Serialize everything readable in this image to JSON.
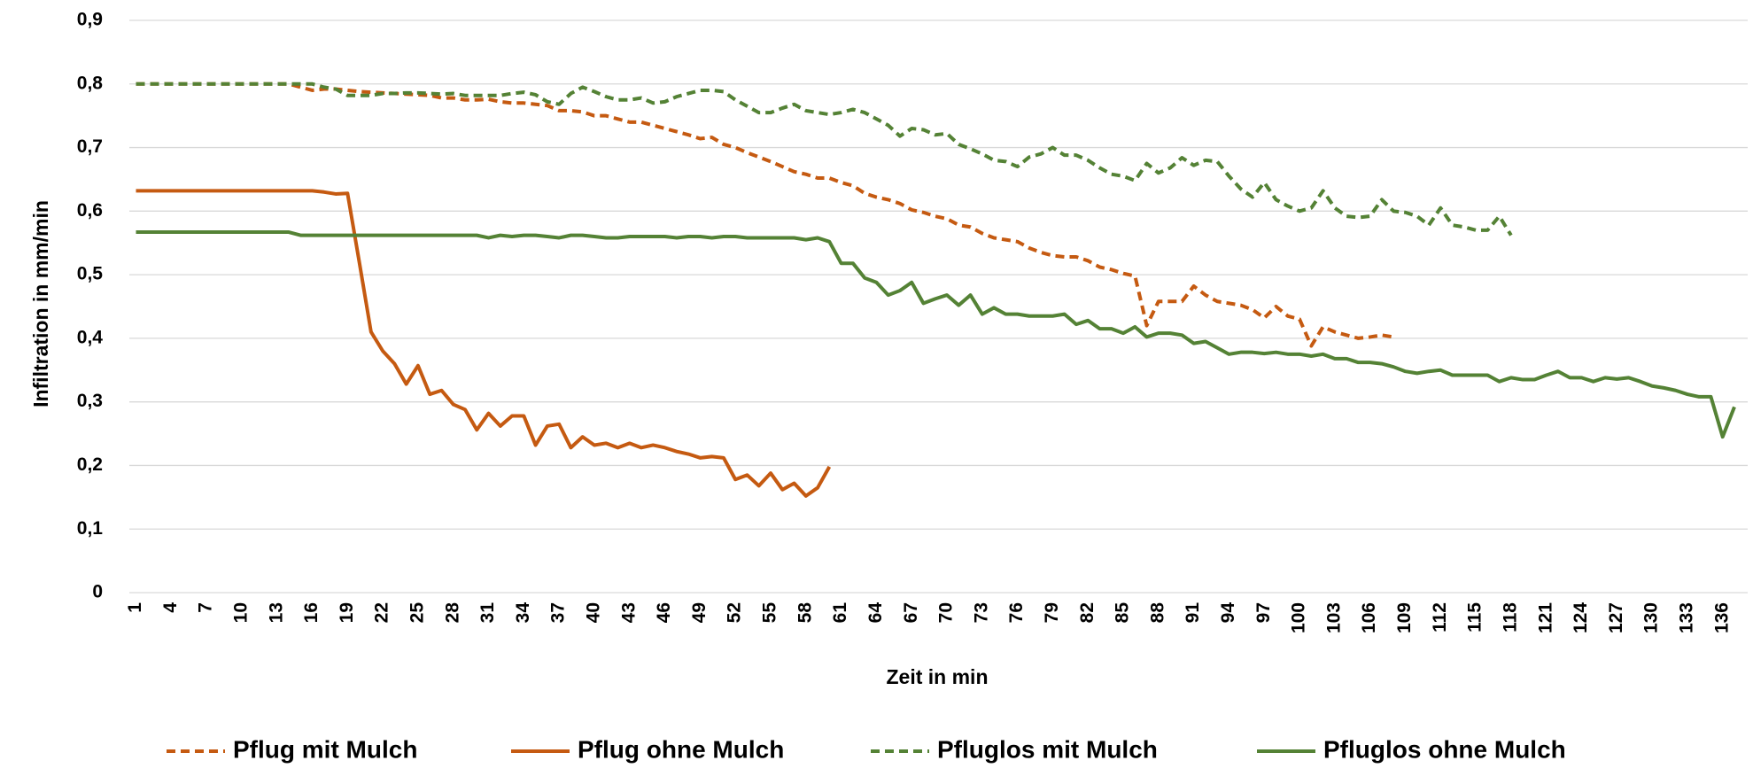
{
  "chart_data": {
    "type": "line",
    "xlabel": "Zeit in min",
    "ylabel": "Infiltration in mm/min",
    "categories": [
      1,
      null,
      null,
      4,
      null,
      null,
      7,
      null,
      null,
      10,
      null,
      null,
      13,
      null,
      null,
      16,
      null,
      null,
      19,
      null,
      null,
      22,
      null,
      null,
      25,
      null,
      null,
      28,
      null,
      null,
      31,
      null,
      null,
      34,
      null,
      null,
      37,
      null,
      null,
      40,
      null,
      null,
      43,
      null,
      null,
      46,
      null,
      null,
      49,
      null,
      null,
      52,
      null,
      null,
      55,
      null,
      null,
      58,
      null,
      null,
      61,
      null,
      null,
      64,
      null,
      null,
      67,
      null,
      null,
      70,
      null,
      null,
      73,
      null,
      null,
      76,
      null,
      null,
      79,
      null,
      null,
      82,
      null,
      null,
      85,
      null,
      null,
      88,
      null,
      null,
      91,
      null,
      null,
      94,
      null,
      null,
      97,
      null,
      null,
      100,
      null,
      null,
      103,
      null,
      null,
      106,
      null,
      null,
      109,
      null,
      null,
      112,
      null,
      null,
      115,
      null,
      null,
      118,
      null,
      null,
      121,
      null,
      null,
      124,
      null,
      null,
      127,
      null,
      null,
      130,
      null,
      null,
      133,
      null,
      null,
      136,
      null
    ],
    "ylim": [
      0,
      0.9
    ],
    "yticks": [
      0,
      {
        "value": 0.1,
        "label": "0,1"
      },
      {
        "value": 0.2,
        "label": "0,2"
      },
      {
        "value": 0.3,
        "label": "0,3"
      },
      {
        "value": 0.4,
        "label": "0,4"
      },
      {
        "value": 0.5,
        "label": "0,5"
      },
      {
        "value": 0.6,
        "label": "0,6"
      },
      {
        "value": 0.7,
        "label": "0,7"
      },
      {
        "value": 0.8,
        "label": "0,8"
      },
      {
        "value": 0.9,
        "label": "0,9"
      }
    ],
    "grid": true,
    "legend": "bottom",
    "series": [
      {
        "name": "Pflug mit Mulch",
        "color": "#c55a11",
        "linestyle": "dashed",
        "values": [
          0.8,
          0.8,
          0.8,
          0.8,
          0.8,
          0.8,
          0.8,
          0.8,
          0.8,
          0.8,
          0.8,
          0.8,
          0.8,
          0.8,
          0.795,
          0.79,
          0.792,
          0.792,
          0.79,
          0.788,
          0.787,
          0.786,
          0.785,
          0.784,
          0.783,
          0.782,
          0.778,
          0.778,
          0.775,
          0.775,
          0.776,
          0.772,
          0.77,
          0.77,
          0.768,
          0.766,
          0.758,
          0.758,
          0.756,
          0.75,
          0.75,
          0.745,
          0.74,
          0.74,
          0.735,
          0.73,
          0.725,
          0.72,
          0.714,
          0.716,
          0.705,
          0.7,
          0.692,
          0.685,
          0.678,
          0.67,
          0.662,
          0.658,
          0.652,
          0.652,
          0.645,
          0.64,
          0.628,
          0.622,
          0.618,
          0.612,
          0.602,
          0.598,
          0.592,
          0.588,
          0.578,
          0.575,
          0.565,
          0.558,
          0.555,
          0.552,
          0.542,
          0.535,
          0.53,
          0.528,
          0.528,
          0.522,
          0.512,
          0.508,
          0.502,
          0.498,
          0.42,
          0.458,
          0.458,
          0.458,
          0.482,
          0.468,
          0.458,
          0.455,
          0.452,
          0.445,
          0.432,
          0.45,
          0.435,
          0.43,
          0.388,
          0.418,
          0.41,
          0.405,
          0.4,
          0.402,
          0.405,
          0.402,
          null,
          null,
          null,
          null,
          null,
          null,
          null,
          null,
          null,
          null,
          null,
          null,
          null,
          null,
          null,
          null,
          null,
          null,
          null,
          null,
          null,
          null,
          null,
          null,
          null,
          null,
          null,
          null,
          null
        ]
      },
      {
        "name": "Pflug ohne Mulch",
        "color": "#c55a11",
        "linestyle": "solid",
        "values": [
          0.632,
          0.632,
          0.632,
          0.632,
          0.632,
          0.632,
          0.632,
          0.632,
          0.632,
          0.632,
          0.632,
          0.632,
          0.632,
          0.632,
          0.632,
          0.632,
          0.63,
          0.627,
          0.628,
          0.52,
          0.41,
          0.38,
          0.36,
          0.328,
          0.357,
          0.312,
          0.318,
          0.296,
          0.288,
          0.256,
          0.282,
          0.262,
          0.278,
          0.278,
          0.232,
          0.262,
          0.265,
          0.228,
          0.245,
          0.232,
          0.235,
          0.228,
          0.235,
          0.228,
          0.232,
          0.228,
          0.222,
          0.218,
          0.212,
          0.214,
          0.212,
          0.178,
          0.185,
          0.168,
          0.188,
          0.162,
          0.172,
          0.152,
          0.165,
          0.198,
          null,
          null,
          null,
          null,
          null,
          null,
          null,
          null,
          null,
          null,
          null,
          null,
          null,
          null,
          null,
          null,
          null,
          null,
          null,
          null,
          null,
          null,
          null,
          null,
          null,
          null,
          null,
          null,
          null,
          null,
          null,
          null,
          null,
          null,
          null,
          null,
          null,
          null,
          null,
          null,
          null,
          null,
          null,
          null,
          null,
          null,
          null,
          null,
          null,
          null,
          null,
          null,
          null,
          null,
          null,
          null,
          null,
          null,
          null,
          null,
          null,
          null,
          null,
          null,
          null,
          null,
          null,
          null,
          null,
          null,
          null,
          null,
          null,
          null,
          null,
          null,
          null
        ]
      },
      {
        "name": "Pfluglos mit Mulch",
        "color": "#548235",
        "linestyle": "dashed",
        "values": [
          0.8,
          0.8,
          0.8,
          0.8,
          0.8,
          0.8,
          0.8,
          0.8,
          0.8,
          0.8,
          0.8,
          0.8,
          0.8,
          0.8,
          0.8,
          0.8,
          0.795,
          0.792,
          0.782,
          0.782,
          0.782,
          0.785,
          0.785,
          0.786,
          0.786,
          0.785,
          0.784,
          0.785,
          0.782,
          0.782,
          0.782,
          0.782,
          0.785,
          0.787,
          0.783,
          0.772,
          0.768,
          0.785,
          0.795,
          0.788,
          0.78,
          0.775,
          0.775,
          0.778,
          0.77,
          0.772,
          0.78,
          0.785,
          0.79,
          0.79,
          0.788,
          0.775,
          0.765,
          0.755,
          0.755,
          0.762,
          0.768,
          0.758,
          0.755,
          0.752,
          0.755,
          0.76,
          0.755,
          0.745,
          0.735,
          0.718,
          0.73,
          0.728,
          0.72,
          0.722,
          0.705,
          0.698,
          0.69,
          0.68,
          0.678,
          0.67,
          0.685,
          0.69,
          0.7,
          0.688,
          0.688,
          0.68,
          0.668,
          0.658,
          0.655,
          0.648,
          0.675,
          0.66,
          0.668,
          0.684,
          0.672,
          0.68,
          0.678,
          0.655,
          0.635,
          0.622,
          0.645,
          0.618,
          0.608,
          0.6,
          0.605,
          0.632,
          0.605,
          0.592,
          0.59,
          0.592,
          0.618,
          0.6,
          0.598,
          0.592,
          0.578,
          0.605,
          0.578,
          0.575,
          0.57,
          0.57,
          0.592,
          0.562,
          null,
          null,
          null,
          null,
          null,
          null,
          null,
          null,
          null,
          null,
          null,
          null,
          null,
          null,
          null,
          null,
          null,
          null,
          null
        ]
      },
      {
        "name": "Pfluglos ohne Mulch",
        "color": "#548235",
        "linestyle": "solid",
        "values": [
          0.567,
          0.567,
          0.567,
          0.567,
          0.567,
          0.567,
          0.567,
          0.567,
          0.567,
          0.567,
          0.567,
          0.567,
          0.567,
          0.567,
          0.562,
          0.562,
          0.562,
          0.562,
          0.562,
          0.562,
          0.562,
          0.562,
          0.562,
          0.562,
          0.562,
          0.562,
          0.562,
          0.562,
          0.562,
          0.562,
          0.558,
          0.562,
          0.56,
          0.562,
          0.562,
          0.56,
          0.558,
          0.562,
          0.562,
          0.56,
          0.558,
          0.558,
          0.56,
          0.56,
          0.56,
          0.56,
          0.558,
          0.56,
          0.56,
          0.558,
          0.56,
          0.56,
          0.558,
          0.558,
          0.558,
          0.558,
          0.558,
          0.555,
          0.558,
          0.552,
          0.518,
          0.518,
          0.495,
          0.488,
          0.468,
          0.475,
          0.488,
          0.455,
          0.462,
          0.468,
          0.452,
          0.468,
          0.438,
          0.448,
          0.438,
          0.438,
          0.435,
          0.435,
          0.435,
          0.438,
          0.422,
          0.428,
          0.415,
          0.415,
          0.408,
          0.418,
          0.402,
          0.408,
          0.408,
          0.405,
          0.392,
          0.395,
          0.385,
          0.375,
          0.378,
          0.378,
          0.376,
          0.378,
          0.375,
          0.375,
          0.372,
          0.375,
          0.368,
          0.368,
          0.362,
          0.362,
          0.36,
          0.355,
          0.348,
          0.345,
          0.348,
          0.35,
          0.342,
          0.342,
          0.342,
          0.342,
          0.332,
          0.338,
          0.335,
          0.335,
          0.342,
          0.348,
          0.338,
          0.338,
          0.332,
          0.338,
          0.336,
          0.338,
          0.332,
          0.325,
          0.322,
          0.318,
          0.312,
          0.308,
          0.308,
          0.245,
          0.292
        ]
      }
    ]
  }
}
